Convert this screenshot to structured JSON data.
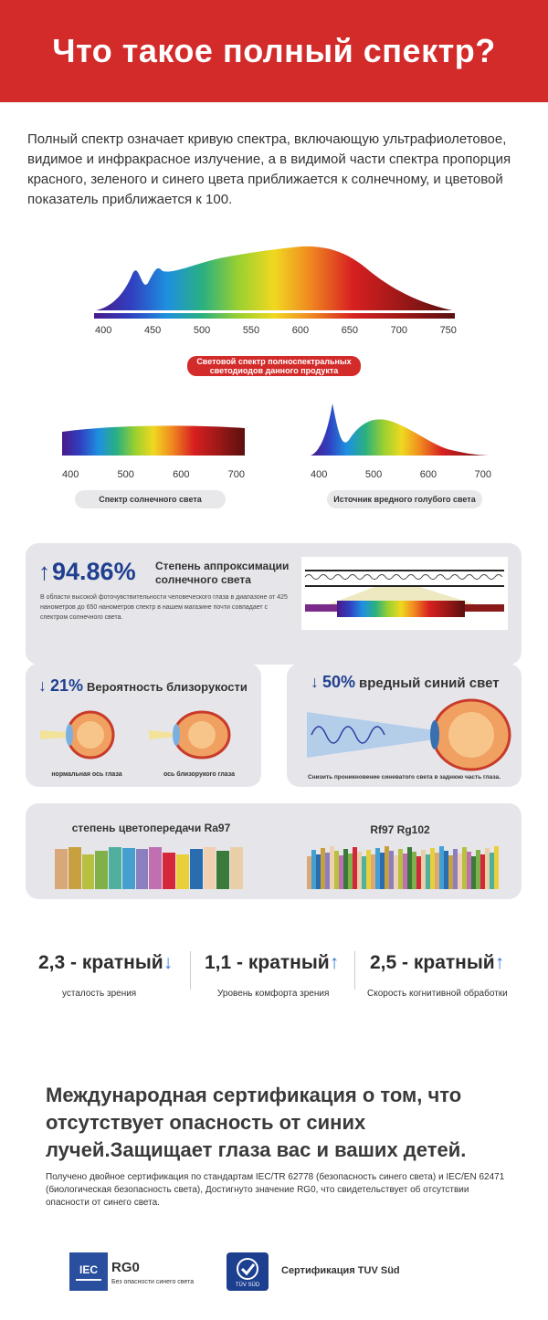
{
  "header": {
    "title": "Что такое полный спектр?"
  },
  "intro": "Полный спектр означает кривую спектра, включающую ультрафиолетовое, видимое и инфракрасное излучение, а в видимой части спектра пропорция красного, зеленого и синего цвета приближается к солнечному, и цветовой показатель приближается к 100.",
  "main_spectrum": {
    "ticks": [
      "400",
      "450",
      "500",
      "550",
      "600",
      "650",
      "700",
      "750"
    ],
    "caption": "Световой спектр полноспектральных светодиодов данного продукта"
  },
  "sun_spectrum": {
    "ticks": [
      "400",
      "500",
      "600",
      "700"
    ],
    "caption": "Спектр солнечного света"
  },
  "blue_spectrum": {
    "ticks": [
      "400",
      "500",
      "600",
      "700"
    ],
    "caption": "Источник вредного голубого света"
  },
  "approx_card": {
    "value": "94.86%",
    "title": "Степень аппроксимации солнечного света",
    "text": "В области высокой фоточувствительности человеческого глаза в диапазоне от 425 нанометров до 650 нанометров спектр в нашем магазине почти совпадает с спектром солнечного света."
  },
  "myopia_card": {
    "value": "21%",
    "title": "Вероятность близорукости",
    "left_caption": "нормальная ось глаза",
    "right_caption": "ось близорукого глаза"
  },
  "bluelight_card": {
    "value": "50%",
    "title": "вредный синий свет",
    "caption": "Снизить проникновение синеватого света в заднюю часть глаза."
  },
  "color_card": {
    "left_title": "степень цветопередачи Ra97",
    "right_title": "Rf97 Rg102",
    "left_swatches": [
      "#d9a878",
      "#c9a040",
      "#b8c040",
      "#7fb04a",
      "#4fb0a0",
      "#45a0d0",
      "#8a80c0",
      "#c070b0",
      "#d6263a",
      "#e8d03a",
      "#2a6cb0",
      "#f0d0b0",
      "#3a7a3a",
      "#e8cfa8"
    ]
  },
  "multipliers": [
    {
      "value": "2,3 - кратный",
      "arrow": "↓",
      "label": "усталость зрения"
    },
    {
      "value": "1,1 - кратный",
      "arrow": "↑",
      "label": "Уровень комфорта зрения"
    },
    {
      "value": "2,5 - кратный",
      "arrow": "↑",
      "label": "Скорость когнитивной обработки"
    }
  ],
  "cert": {
    "heading": "Международная сертификация о том, что отсутствует опасность от синих лучей.Защищает глаза вас и ваших детей.",
    "text": "Получено двойное сертификация по стандартам IEC/TR 62778 (безопасность синего света) и IEC/EN 62471 (биологическая безопасность света), Достигнуто значение RG0, что свидетельствует об отсутствии опасности от синего света.",
    "iec_logo": "IEC",
    "rg_value": "RG0",
    "rg_caption": "Без опасности синего света",
    "tuv_logo": "TÜV SÜD",
    "tuv_caption": "Сертификация TUV Süd"
  }
}
